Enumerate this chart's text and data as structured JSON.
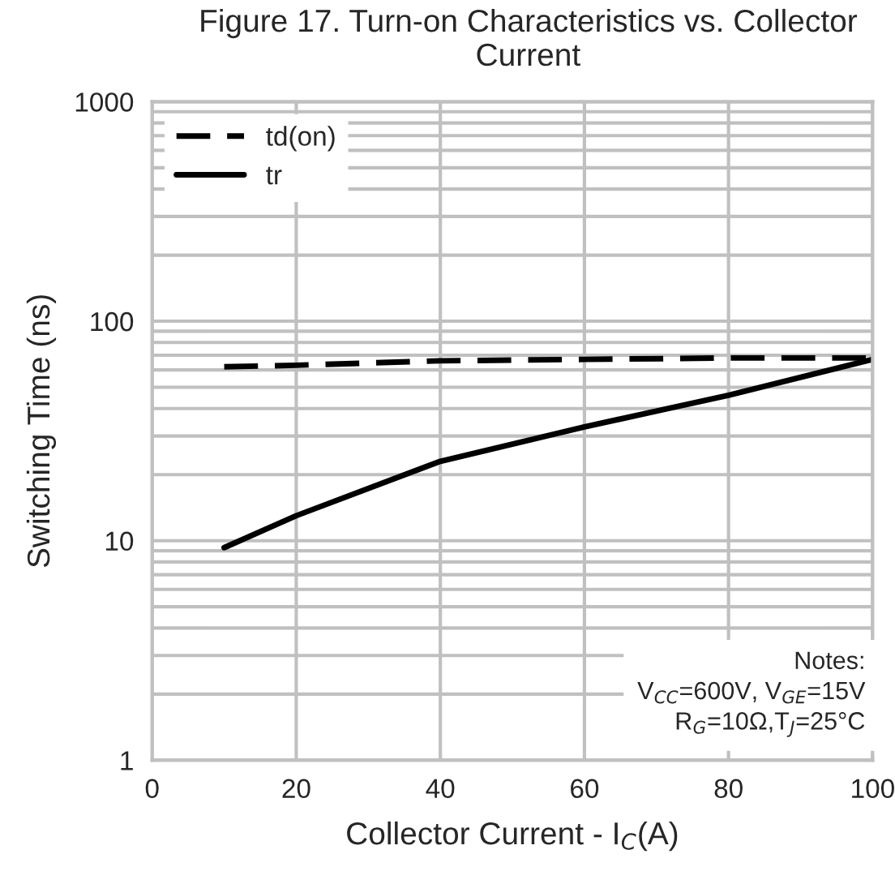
{
  "chart_data": {
    "type": "line",
    "title": "Figure 17. Turn-on Characteristics vs. Collector Current",
    "xlabel": "Collector Current - I$_{C}$(A)",
    "ylabel": "Switching Time (ns)",
    "x": [
      10,
      20,
      40,
      60,
      80,
      100
    ],
    "series": [
      {
        "name": "td(on)",
        "color": "#000000",
        "line_style": "dashed",
        "values": [
          62,
          63,
          66,
          67,
          68,
          68
        ]
      },
      {
        "name": "tr",
        "color": "#000000",
        "line_style": "solid",
        "values": [
          9.3,
          13,
          23,
          33,
          46,
          67
        ]
      }
    ],
    "xlim": [
      0,
      100
    ],
    "xticks": [
      0,
      20,
      40,
      60,
      80,
      100
    ],
    "ylim": [
      1,
      1000
    ],
    "yticks": [
      1,
      10,
      100,
      1000
    ],
    "log": "y",
    "grid": true,
    "legend": "top left",
    "marker": "none",
    "annotations": [
      "Notes:\nV$_{CC}$=600V, V$_{GE}$=15V\nR$_{G}$=10Ω,T$_{J}$=25°C"
    ]
  }
}
